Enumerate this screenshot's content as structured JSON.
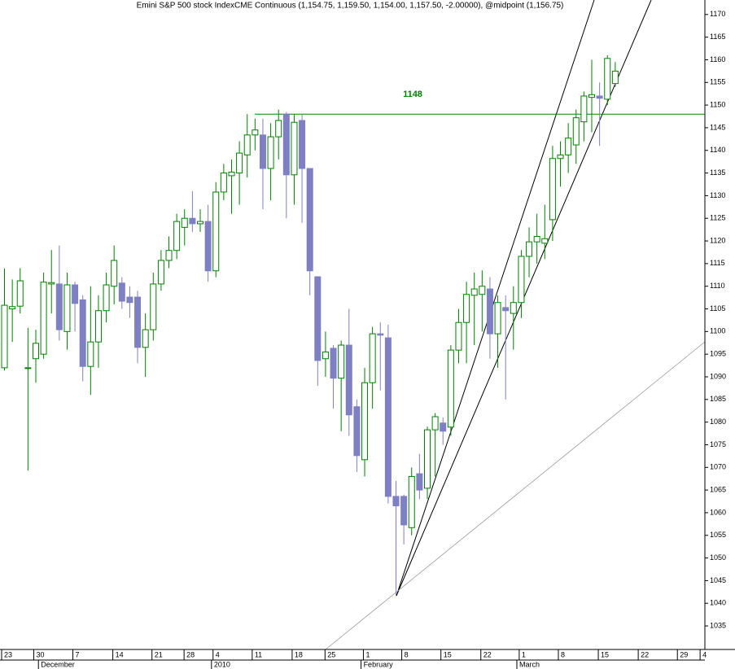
{
  "chart_data": {
    "type": "candlestick",
    "title": "Emini S&P 500 stock IndexCME Continuous (1,154.75, 1,159.50, 1,154.00, 1,157.50, -2.00000), @midpoint (1,156.75)",
    "open": [
      1092,
      1105,
      1105.6,
      1092,
      1094,
      1095,
      1110.5,
      1110.5,
      1100,
      1110.3,
      1107,
      1092.3,
      1097.7,
      1104.6,
      1110,
      1110.7,
      1107.6,
      1107.6,
      1096.5,
      1100.4,
      1110.5,
      1115.7,
      1117.9,
      1123,
      1125,
      1123.8,
      1124.3,
      1113.4,
      1130.8,
      1134.4,
      1135,
      1139,
      1143.4,
      1143.4,
      1136,
      1143,
      1148,
      1134.6,
      1146.6,
      1136,
      1112.1,
      1094,
      1096.3,
      1089.7,
      1097,
      1083.4,
      1071.7,
      1088.7,
      1099.5,
      1098.6,
      1063.6,
      1063.6,
      1056.7,
      1068.6,
      1065.4,
      1078.3,
      1079.8,
      1078.9,
      1095.9,
      1102,
      1108,
      1108.2,
      1109.4,
      1099.5,
      1105.3,
      1104,
      1106.4,
      1116.6,
      1119.8,
      1119.5,
      1124.7,
      1138.2,
      1139,
      1141.2,
      1146.3,
      1151.7,
      1152,
      1151.3,
      1154.75
    ],
    "high": [
      1113.9,
      1111.5,
      1114,
      1100.8,
      1100.4,
      1113,
      1118,
      1119,
      1113,
      1111,
      1108,
      1110,
      1108,
      1113,
      1119,
      1112,
      1110,
      1109,
      1104,
      1113,
      1118,
      1121,
      1126,
      1127,
      1131,
      1127,
      1128,
      1133,
      1137,
      1138,
      1142,
      1148,
      1147,
      1147,
      1146,
      1149,
      1148.5,
      1148,
      1148,
      1136,
      1112,
      1100,
      1097,
      1098,
      1105,
      1085,
      1092,
      1101,
      1102,
      1101.5,
      1067,
      1064,
      1070,
      1073,
      1079,
      1082,
      1081,
      1097,
      1105,
      1111,
      1113,
      1113.5,
      1112,
      1108,
      1108,
      1110,
      1118,
      1123,
      1126,
      1128,
      1141,
      1142,
      1146,
      1149,
      1153,
      1160,
      1155,
      1161,
      1159.5
    ],
    "low": [
      1091.4,
      1097.7,
      1104,
      1069.3,
      1088.7,
      1094,
      1104,
      1098,
      1096,
      1100,
      1089,
      1086,
      1092,
      1102,
      1106,
      1105,
      1103,
      1093,
      1090,
      1098,
      1109,
      1114,
      1116,
      1119,
      1122,
      1122,
      1111,
      1112,
      1129,
      1126,
      1128,
      1134,
      1140,
      1127,
      1129,
      1138,
      1125,
      1128,
      1124,
      1108,
      1088,
      1090,
      1083,
      1078,
      1077,
      1069,
      1068,
      1083,
      1087,
      1062,
      1041.6,
      1053,
      1055,
      1063,
      1063,
      1068,
      1075,
      1077,
      1093,
      1093,
      1097,
      1100,
      1094,
      1092,
      1085,
      1096,
      1103,
      1112,
      1115,
      1116,
      1120,
      1132,
      1135,
      1137,
      1142,
      1144,
      1141,
      1150,
      1154
    ],
    "close": [
      1105.8,
      1105.5,
      1111.2,
      1092,
      1097.4,
      1110.9,
      1110.8,
      1100.4,
      1110.3,
      1106.2,
      1092.3,
      1097.7,
      1104.6,
      1110.3,
      1115.7,
      1106.7,
      1106.4,
      1096.5,
      1100.4,
      1110.5,
      1115.7,
      1117.9,
      1124.3,
      1125,
      1123.8,
      1124.3,
      1113.4,
      1130.8,
      1135,
      1135.2,
      1139.4,
      1143.4,
      1144.5,
      1136,
      1143,
      1146.6,
      1134.6,
      1146.2,
      1136,
      1113.4,
      1093.6,
      1095.5,
      1089.7,
      1097,
      1081.6,
      1072.6,
      1088.7,
      1099.5,
      1099.2,
      1063.6,
      1061.5,
      1057.3,
      1068,
      1065,
      1078.3,
      1081.2,
      1078,
      1095.9,
      1102,
      1108.2,
      1109.4,
      1110,
      1099.5,
      1106.4,
      1104.6,
      1106.4,
      1116.6,
      1119.8,
      1121,
      1120.5,
      1138.2,
      1139,
      1142.7,
      1147.2,
      1152,
      1152.3,
      1151.5,
      1160.3,
      1157.5
    ],
    "up_color": "#008000",
    "down_color": "#7f7fc4",
    "xlim": [
      -0.52,
      89.5
    ],
    "xticks": [
      {
        "value": 0,
        "label": "23"
      },
      {
        "value": 4.1,
        "label": "30"
      },
      {
        "value": 9.1,
        "label": "7"
      },
      {
        "value": 14.2,
        "label": "14"
      },
      {
        "value": 19.2,
        "label": "21"
      },
      {
        "value": 23.3,
        "label": "28"
      },
      {
        "value": 27,
        "label": "4"
      },
      {
        "value": 32,
        "label": "11"
      },
      {
        "value": 37.1,
        "label": "18"
      },
      {
        "value": 41.3,
        "label": "25"
      },
      {
        "value": 46.2,
        "label": "1"
      },
      {
        "value": 51.1,
        "label": "8"
      },
      {
        "value": 56.1,
        "label": "15"
      },
      {
        "value": 61.2,
        "label": "22"
      },
      {
        "value": 66.1,
        "label": "1"
      },
      {
        "value": 71.1,
        "label": "8"
      },
      {
        "value": 76.2,
        "label": "15"
      },
      {
        "value": 81.3,
        "label": "22"
      },
      {
        "value": 86.3,
        "label": "29"
      },
      {
        "value": 89.2,
        "label": "4"
      }
    ],
    "month_ticks": [
      {
        "value": 4.7,
        "label": "December"
      },
      {
        "value": 26.8,
        "label": "2010"
      },
      {
        "value": 45.9,
        "label": "February"
      },
      {
        "value": 65.8,
        "label": "March"
      }
    ],
    "ylim": [
      1029.8,
      1173.2
    ],
    "yticks": [
      1035,
      1040,
      1045,
      1050,
      1055,
      1060,
      1065,
      1070,
      1075,
      1080,
      1085,
      1090,
      1095,
      1100,
      1105,
      1110,
      1115,
      1120,
      1125,
      1130,
      1135,
      1140,
      1145,
      1150,
      1155,
      1160,
      1165,
      1170
    ],
    "level": 1148
  }
}
